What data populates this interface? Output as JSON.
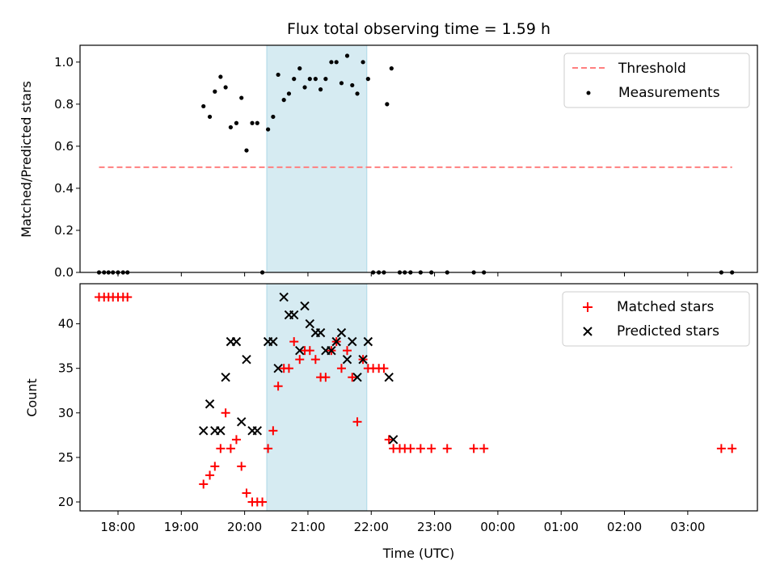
{
  "chart_data": {
    "title": "Flux total observing time = 1.59 h",
    "xlabel": "Time (UTC)",
    "x_ticks": [
      {
        "hour": 0,
        "label": "18:00"
      },
      {
        "hour": 1,
        "label": "19:00"
      },
      {
        "hour": 2,
        "label": "20:00"
      },
      {
        "hour": 3,
        "label": "21:00"
      },
      {
        "hour": 4,
        "label": "22:00"
      },
      {
        "hour": 5,
        "label": "23:00"
      },
      {
        "hour": 6,
        "label": "00:00"
      },
      {
        "hour": 7,
        "label": "01:00"
      },
      {
        "hour": 8,
        "label": "02:00"
      },
      {
        "hour": 9,
        "label": "03:00"
      }
    ],
    "xlim": [
      -0.6,
      10.1
    ],
    "shaded_span": [
      2.35,
      3.93
    ],
    "colors": {
      "shade": "#add8e6",
      "threshold": "#ff7f7f",
      "measurements": "#000000",
      "matched": "#ff0000",
      "predicted": "#000000"
    },
    "top_panel": {
      "type": "scatter",
      "ylabel": "Matched/Predicted stars",
      "ylim": [
        0,
        1.08
      ],
      "y_ticks": [
        "0.0",
        "0.2",
        "0.4",
        "0.6",
        "0.8",
        "1.0"
      ],
      "legend_position": "top-right",
      "threshold": {
        "name": "Threshold",
        "value": 0.5,
        "x_range": [
          -0.3,
          9.7
        ]
      },
      "measurements": {
        "name": "Measurements",
        "points": [
          [
            -0.3,
            0
          ],
          [
            -0.22,
            0
          ],
          [
            -0.15,
            0
          ],
          [
            -0.08,
            0
          ],
          [
            0.0,
            0
          ],
          [
            0.08,
            0
          ],
          [
            0.15,
            0
          ],
          [
            1.35,
            0.79
          ],
          [
            1.45,
            0.74
          ],
          [
            1.53,
            0.86
          ],
          [
            1.62,
            0.93
          ],
          [
            1.7,
            0.88
          ],
          [
            1.78,
            0.69
          ],
          [
            1.87,
            0.71
          ],
          [
            1.95,
            0.83
          ],
          [
            2.03,
            0.58
          ],
          [
            2.12,
            0.71
          ],
          [
            2.2,
            0.71
          ],
          [
            2.28,
            0
          ],
          [
            2.37,
            0.68
          ],
          [
            2.45,
            0.74
          ],
          [
            2.53,
            0.94
          ],
          [
            2.62,
            0.82
          ],
          [
            2.7,
            0.85
          ],
          [
            2.78,
            0.92
          ],
          [
            2.87,
            0.97
          ],
          [
            2.95,
            0.88
          ],
          [
            3.03,
            0.92
          ],
          [
            3.12,
            0.92
          ],
          [
            3.2,
            0.87
          ],
          [
            3.28,
            0.92
          ],
          [
            3.37,
            1.0
          ],
          [
            3.45,
            1.0
          ],
          [
            3.53,
            0.9
          ],
          [
            3.62,
            1.03
          ],
          [
            3.7,
            0.89
          ],
          [
            3.78,
            0.85
          ],
          [
            3.87,
            1.0
          ],
          [
            3.95,
            0.92
          ],
          [
            4.03,
            0
          ],
          [
            4.12,
            0
          ],
          [
            4.2,
            0
          ],
          [
            4.25,
            0.8
          ],
          [
            4.32,
            0.97
          ],
          [
            4.45,
            0
          ],
          [
            4.53,
            0
          ],
          [
            4.62,
            0
          ],
          [
            4.78,
            0
          ],
          [
            4.95,
            0
          ],
          [
            5.2,
            0
          ],
          [
            5.62,
            0
          ],
          [
            5.78,
            0
          ],
          [
            9.53,
            0
          ],
          [
            9.7,
            0
          ]
        ]
      }
    },
    "bottom_panel": {
      "type": "scatter",
      "ylabel": "Count",
      "ylim": [
        19,
        44.5
      ],
      "y_ticks": [
        20,
        25,
        30,
        35,
        40
      ],
      "legend_position": "top-right",
      "series": [
        {
          "name": "Matched stars",
          "marker": "plus",
          "points": [
            [
              -0.3,
              43
            ],
            [
              -0.22,
              43
            ],
            [
              -0.15,
              43
            ],
            [
              -0.08,
              43
            ],
            [
              0.0,
              43
            ],
            [
              0.08,
              43
            ],
            [
              0.15,
              43
            ],
            [
              1.35,
              22
            ],
            [
              1.45,
              23
            ],
            [
              1.53,
              24
            ],
            [
              1.62,
              26
            ],
            [
              1.7,
              30
            ],
            [
              1.78,
              26
            ],
            [
              1.87,
              27
            ],
            [
              1.95,
              24
            ],
            [
              2.03,
              21
            ],
            [
              2.12,
              20
            ],
            [
              2.2,
              20
            ],
            [
              2.28,
              20
            ],
            [
              2.37,
              26
            ],
            [
              2.45,
              28
            ],
            [
              2.53,
              33
            ],
            [
              2.62,
              35
            ],
            [
              2.7,
              35
            ],
            [
              2.78,
              38
            ],
            [
              2.87,
              36
            ],
            [
              2.95,
              37
            ],
            [
              3.03,
              37
            ],
            [
              3.12,
              36
            ],
            [
              3.2,
              34
            ],
            [
              3.28,
              34
            ],
            [
              3.37,
              37
            ],
            [
              3.45,
              38
            ],
            [
              3.53,
              35
            ],
            [
              3.62,
              37
            ],
            [
              3.7,
              34
            ],
            [
              3.78,
              29
            ],
            [
              3.87,
              36
            ],
            [
              3.95,
              35
            ],
            [
              4.03,
              35
            ],
            [
              4.12,
              35
            ],
            [
              4.2,
              35
            ],
            [
              4.28,
              27
            ],
            [
              4.35,
              26
            ],
            [
              4.45,
              26
            ],
            [
              4.53,
              26
            ],
            [
              4.62,
              26
            ],
            [
              4.78,
              26
            ],
            [
              4.95,
              26
            ],
            [
              5.2,
              26
            ],
            [
              5.62,
              26
            ],
            [
              5.78,
              26
            ],
            [
              9.53,
              26
            ],
            [
              9.7,
              26
            ]
          ]
        },
        {
          "name": "Predicted stars",
          "marker": "x",
          "points": [
            [
              1.35,
              28
            ],
            [
              1.45,
              31
            ],
            [
              1.53,
              28
            ],
            [
              1.62,
              28
            ],
            [
              1.7,
              34
            ],
            [
              1.78,
              38
            ],
            [
              1.87,
              38
            ],
            [
              1.95,
              29
            ],
            [
              2.03,
              36
            ],
            [
              2.12,
              28
            ],
            [
              2.2,
              28
            ],
            [
              2.37,
              38
            ],
            [
              2.45,
              38
            ],
            [
              2.53,
              35
            ],
            [
              2.62,
              43
            ],
            [
              2.7,
              41
            ],
            [
              2.78,
              41
            ],
            [
              2.87,
              37
            ],
            [
              2.95,
              42
            ],
            [
              3.03,
              40
            ],
            [
              3.12,
              39
            ],
            [
              3.2,
              39
            ],
            [
              3.28,
              37
            ],
            [
              3.37,
              37
            ],
            [
              3.45,
              38
            ],
            [
              3.53,
              39
            ],
            [
              3.62,
              36
            ],
            [
              3.7,
              38
            ],
            [
              3.78,
              34
            ],
            [
              3.87,
              36
            ],
            [
              3.95,
              38
            ],
            [
              4.28,
              34
            ],
            [
              4.35,
              27
            ]
          ]
        }
      ]
    }
  }
}
